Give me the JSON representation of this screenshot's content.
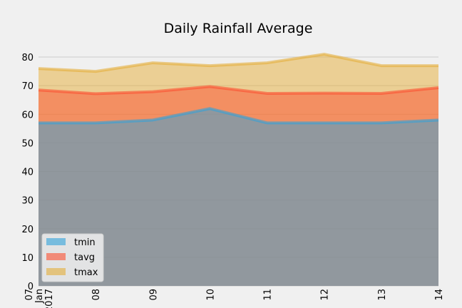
{
  "chart_data": {
    "type": "area",
    "title": "Daily Rainfall Average",
    "xlabel": "",
    "ylabel": "",
    "categories": [
      "07\nJan\n2017",
      "08",
      "09",
      "10",
      "11",
      "12",
      "13",
      "14"
    ],
    "series": [
      {
        "name": "tmin",
        "values": [
          57,
          57,
          58,
          62,
          57,
          57,
          57,
          58
        ]
      },
      {
        "name": "tavg",
        "values": [
          68.5,
          67.2,
          67.9,
          69.7,
          67.3,
          67.4,
          67.3,
          69.3
        ]
      },
      {
        "name": "tmax",
        "values": [
          76,
          75,
          78,
          77,
          78,
          81,
          77,
          77
        ]
      }
    ],
    "ylim": [
      0,
      85
    ],
    "yticks": [
      0,
      10,
      20,
      30,
      40,
      50,
      60,
      70,
      80
    ],
    "stacked": false,
    "grid": true,
    "legend_position": "lower-left",
    "colors": {
      "tmin": "#30a2da",
      "tavg": "#fc4f30",
      "tmax": "#e5ae38"
    },
    "background": "#f0f0f0",
    "grid_color": "#cbcbcb"
  }
}
